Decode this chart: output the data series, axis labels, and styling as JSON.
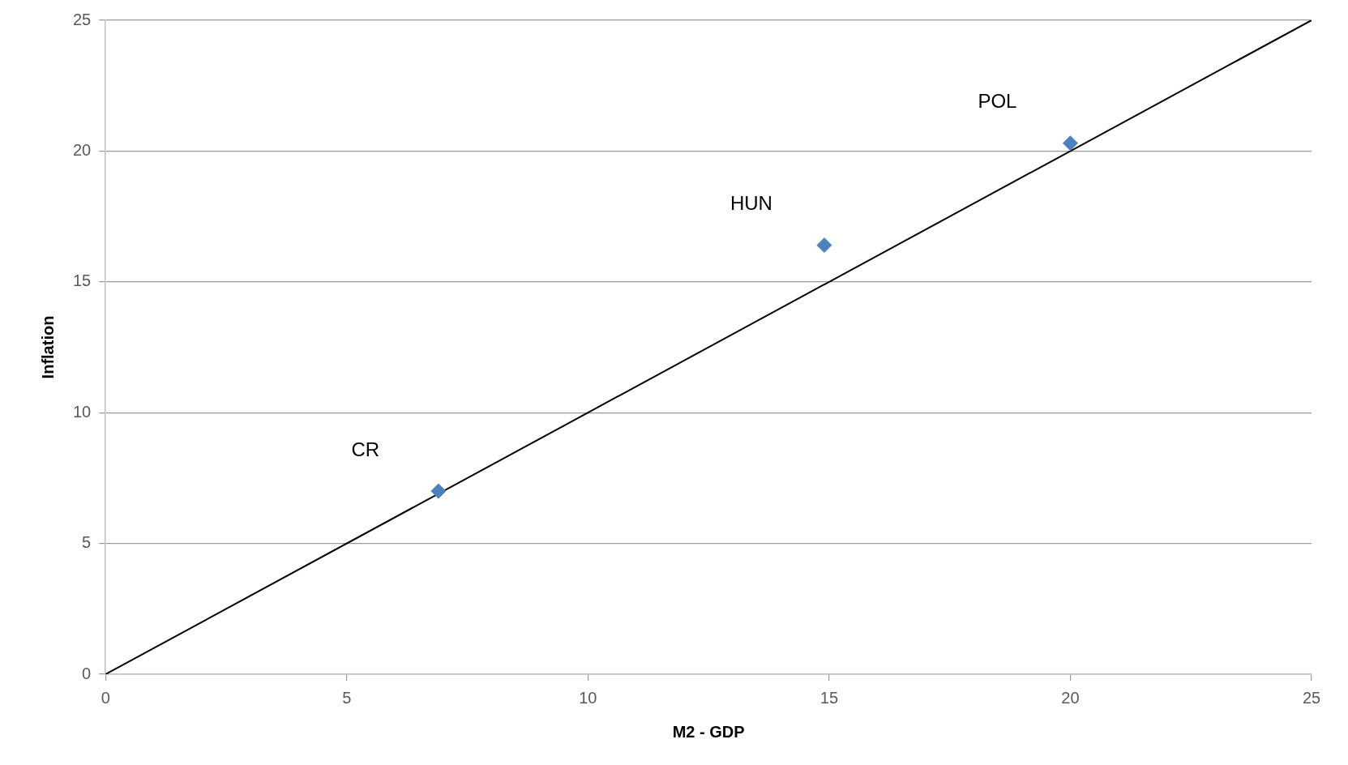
{
  "chart_data": {
    "type": "scatter",
    "xlabel": "M2 - GDP",
    "ylabel": "Inflation",
    "xlim": [
      0,
      25
    ],
    "xticks": [
      0,
      5,
      10,
      15,
      20,
      25
    ],
    "ylim": [
      0,
      25
    ],
    "yticks": [
      0,
      5,
      10,
      15,
      20,
      25
    ],
    "grid": "y",
    "legend": false,
    "marker": "diamond",
    "series": [
      {
        "type": "scatter",
        "color": "#4f81bd",
        "x": [
          6.9,
          14.9,
          20
        ],
        "values": [
          7.0,
          16.4,
          20.3
        ]
      },
      {
        "type": "line",
        "color": "#000000",
        "marker": "none",
        "x": [
          0,
          25
        ],
        "values": [
          0,
          25
        ]
      }
    ],
    "annotations": [
      "CR",
      "HUN",
      "POL"
    ]
  }
}
